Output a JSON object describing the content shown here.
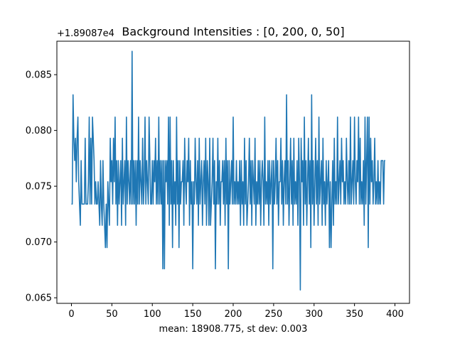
{
  "chart_data": {
    "type": "line",
    "title": "Background Intensities : [0, 200, 0, 50]",
    "xlabel": "mean: 18908.775, st dev: 0.003",
    "ylabel": "",
    "y_offset_label": "+1.89087e4",
    "xlim": [
      -18,
      418
    ],
    "ylim": [
      0.0645,
      0.088
    ],
    "x_ticks": [
      0,
      50,
      100,
      150,
      200,
      250,
      300,
      350,
      400
    ],
    "x_tick_labels": [
      "0",
      "50",
      "100",
      "150",
      "200",
      "250",
      "300",
      "350",
      "400"
    ],
    "y_ticks": [
      0.065,
      0.07,
      0.075,
      0.08,
      0.085
    ],
    "y_tick_labels": [
      "0.065",
      "0.070",
      "0.075",
      "0.080",
      "0.085"
    ],
    "grid": false,
    "series": [
      {
        "color": "#1f77b4",
        "x_start": 0,
        "x_step": 1,
        "values": [
          0.0734,
          0.0734,
          0.0832,
          0.0793,
          0.0773,
          0.0793,
          0.0754,
          0.0793,
          0.0812,
          0.0754,
          0.0734,
          0.0715,
          0.0773,
          0.0734,
          0.0734,
          0.0734,
          0.0734,
          0.0793,
          0.0734,
          0.0734,
          0.0734,
          0.0754,
          0.0812,
          0.0734,
          0.0793,
          0.0734,
          0.0812,
          0.0793,
          0.0773,
          0.0734,
          0.0754,
          0.0734,
          0.0734,
          0.0754,
          0.0734,
          0.0715,
          0.0773,
          0.0734,
          0.0715,
          0.0773,
          0.0734,
          0.0715,
          0.0695,
          0.0734,
          0.0695,
          0.0754,
          0.0734,
          0.0715,
          0.0793,
          0.0754,
          0.0773,
          0.0734,
          0.0793,
          0.0754,
          0.0812,
          0.0734,
          0.0773,
          0.0715,
          0.0773,
          0.0734,
          0.0754,
          0.0773,
          0.0715,
          0.0793,
          0.0734,
          0.0754,
          0.0773,
          0.0715,
          0.0812,
          0.0734,
          0.0773,
          0.0754,
          0.0734,
          0.0773,
          0.0734,
          0.0871,
          0.0734,
          0.0773,
          0.0734,
          0.0773,
          0.0715,
          0.0773,
          0.0734,
          0.0812,
          0.0734,
          0.0773,
          0.0754,
          0.0734,
          0.0793,
          0.0734,
          0.0754,
          0.0812,
          0.0734,
          0.0773,
          0.0754,
          0.0734,
          0.0812,
          0.0773,
          0.0734,
          0.0734,
          0.0773,
          0.0734,
          0.0773,
          0.0754,
          0.0793,
          0.0734,
          0.0773,
          0.0734,
          0.0812,
          0.0734,
          0.0773,
          0.0734,
          0.0773,
          0.0676,
          0.0773,
          0.0676,
          0.0773,
          0.0754,
          0.0773,
          0.0734,
          0.0812,
          0.0715,
          0.0812,
          0.0734,
          0.0773,
          0.0695,
          0.0773,
          0.0734,
          0.0754,
          0.0715,
          0.0812,
          0.0734,
          0.0773,
          0.0695,
          0.0773,
          0.0734,
          0.0754,
          0.0754,
          0.0773,
          0.0715,
          0.0793,
          0.0754,
          0.0734,
          0.0773,
          0.0754,
          0.0793,
          0.0715,
          0.0773,
          0.0734,
          0.0754,
          0.0676,
          0.0754,
          0.0734,
          0.0793,
          0.0754,
          0.0734,
          0.0773,
          0.0715,
          0.0793,
          0.0734,
          0.0754,
          0.0773,
          0.0715,
          0.0754,
          0.0773,
          0.0734,
          0.0793,
          0.0715,
          0.0773,
          0.0754,
          0.0715,
          0.0793,
          0.0715,
          0.0734,
          0.0754,
          0.0793,
          0.0734,
          0.0773,
          0.0676,
          0.0754,
          0.0734,
          0.0793,
          0.0734,
          0.0773,
          0.0715,
          0.0754,
          0.0754,
          0.0773,
          0.0734,
          0.0773,
          0.0715,
          0.0793,
          0.0734,
          0.0773,
          0.0676,
          0.0773,
          0.0734,
          0.0754,
          0.0773,
          0.0734,
          0.0812,
          0.0734,
          0.0754,
          0.0734,
          0.0773,
          0.0734,
          0.0754,
          0.0734,
          0.0773,
          0.0715,
          0.0773,
          0.0734,
          0.0754,
          0.0715,
          0.0793,
          0.0734,
          0.0773,
          0.0715,
          0.0734,
          0.0754,
          0.0793,
          0.0734,
          0.0773,
          0.0715,
          0.0773,
          0.0754,
          0.0734,
          0.0793,
          0.0715,
          0.0754,
          0.0734,
          0.0773,
          0.0734,
          0.0773,
          0.0715,
          0.0754,
          0.0773,
          0.0754,
          0.0715,
          0.0812,
          0.0734,
          0.0754,
          0.0734,
          0.0773,
          0.0715,
          0.0773,
          0.0734,
          0.0754,
          0.0773,
          0.0676,
          0.0773,
          0.0734,
          0.0754,
          0.0793,
          0.0734,
          0.0773,
          0.0715,
          0.0754,
          0.0754,
          0.0793,
          0.0734,
          0.0773,
          0.0715,
          0.0754,
          0.0773,
          0.0734,
          0.0832,
          0.0734,
          0.0773,
          0.0715,
          0.0754,
          0.0793,
          0.0734,
          0.0773,
          0.0715,
          0.0793,
          0.0734,
          0.0754,
          0.0734,
          0.0773,
          0.0715,
          0.0793,
          0.0754,
          0.0657,
          0.0793,
          0.0754,
          0.0773,
          0.0715,
          0.0812,
          0.0734,
          0.0773,
          0.0715,
          0.0754,
          0.0793,
          0.0734,
          0.0773,
          0.0695,
          0.0832,
          0.0734,
          0.0773,
          0.0715,
          0.0754,
          0.0793,
          0.0734,
          0.0773,
          0.0715,
          0.0812,
          0.0734,
          0.0754,
          0.0773,
          0.0715,
          0.0793,
          0.0734,
          0.0754,
          0.0715,
          0.0773,
          0.0734,
          0.0754,
          0.0773,
          0.0695,
          0.0754,
          0.0695,
          0.0734,
          0.0773,
          0.0715,
          0.0793,
          0.0734,
          0.0754,
          0.0734,
          0.0812,
          0.0734,
          0.0754,
          0.0773,
          0.0734,
          0.0793,
          0.0754,
          0.0773,
          0.0734,
          0.0754,
          0.0734,
          0.0793,
          0.0754,
          0.0734,
          0.0773,
          0.0734,
          0.0812,
          0.0734,
          0.0754,
          0.0773,
          0.0734,
          0.0812,
          0.0754,
          0.0734,
          0.0773,
          0.0754,
          0.0812,
          0.0734,
          0.0793,
          0.0734,
          0.0754,
          0.0734,
          0.0773,
          0.0715,
          0.0812,
          0.0734,
          0.0773,
          0.0812,
          0.0695,
          0.0812,
          0.0734,
          0.0793,
          0.0754,
          0.0773,
          0.0734,
          0.0754,
          0.0793,
          0.0734,
          0.0754,
          0.0734,
          0.0773,
          0.0734,
          0.0754,
          0.0734,
          0.0773,
          0.0773,
          0.0773,
          0.0734,
          0.0773,
          0.0773
        ]
      }
    ]
  }
}
